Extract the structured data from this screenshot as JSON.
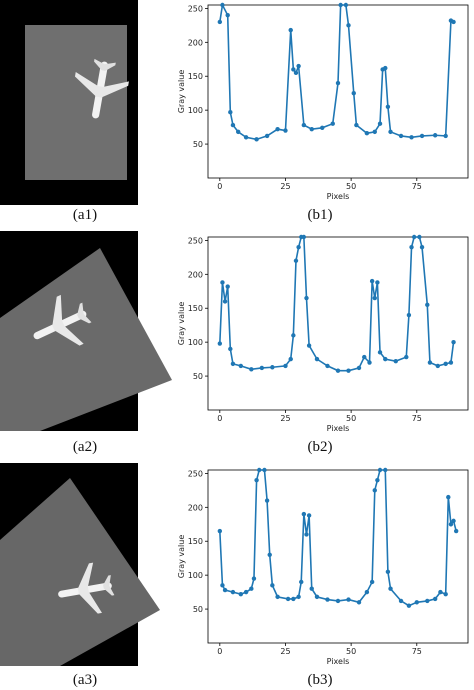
{
  "figure": {
    "image_captions": [
      "(a1)",
      "(a2)",
      "(a3)"
    ]
  },
  "chart_data": [
    {
      "type": "line",
      "caption": "(b1)",
      "xlabel": "Pixels",
      "ylabel": "Gray value",
      "xlim": [
        -4.5,
        94.5
      ],
      "ylim": [
        0,
        255
      ],
      "xticks": [
        0,
        25,
        50,
        75
      ],
      "yticks": [
        50,
        100,
        150,
        200,
        250
      ],
      "series": [
        {
          "color": "#1f77b4",
          "x": [
            0,
            1,
            3,
            4,
            5,
            7,
            10,
            14,
            18,
            22,
            25,
            27,
            28,
            29,
            30,
            32,
            35,
            39,
            43,
            45,
            46,
            48,
            49,
            51,
            52,
            56,
            59,
            61,
            62,
            63,
            64,
            65,
            69,
            73,
            77,
            82,
            86,
            88,
            89
          ],
          "values": [
            230,
            255,
            240,
            97,
            78,
            68,
            60,
            57,
            62,
            72,
            70,
            218,
            160,
            155,
            165,
            78,
            72,
            74,
            80,
            140,
            255,
            255,
            225,
            125,
            78,
            66,
            68,
            80,
            160,
            162,
            105,
            68,
            62,
            60,
            62,
            63,
            62,
            232,
            230
          ]
        }
      ]
    },
    {
      "type": "line",
      "caption": "(b2)",
      "xlabel": "Pixels",
      "ylabel": "Gray value",
      "xlim": [
        -4.5,
        94.5
      ],
      "ylim": [
        0,
        255
      ],
      "xticks": [
        0,
        25,
        50,
        75
      ],
      "yticks": [
        50,
        100,
        150,
        200,
        250
      ],
      "series": [
        {
          "color": "#1f77b4",
          "x": [
            0,
            1,
            2,
            3,
            4,
            5,
            8,
            12,
            16,
            20,
            25,
            27,
            28,
            29,
            30,
            31,
            32,
            33,
            34,
            37,
            41,
            45,
            49,
            53,
            55,
            57,
            58,
            59,
            60,
            61,
            63,
            67,
            71,
            72,
            73,
            74,
            76,
            77,
            79,
            80,
            83,
            86,
            88,
            89
          ],
          "values": [
            98,
            188,
            160,
            182,
            90,
            68,
            65,
            60,
            62,
            63,
            65,
            75,
            110,
            220,
            240,
            255,
            255,
            165,
            95,
            75,
            65,
            58,
            58,
            62,
            78,
            70,
            190,
            165,
            188,
            85,
            75,
            72,
            78,
            140,
            240,
            255,
            255,
            240,
            155,
            70,
            65,
            68,
            70,
            100
          ]
        }
      ]
    },
    {
      "type": "line",
      "caption": "(b3)",
      "xlabel": "Pixels",
      "ylabel": "Gray value",
      "xlim": [
        -4.5,
        94.5
      ],
      "ylim": [
        0,
        255
      ],
      "xticks": [
        0,
        25,
        50,
        75
      ],
      "yticks": [
        50,
        100,
        150,
        200,
        250
      ],
      "series": [
        {
          "color": "#1f77b4",
          "x": [
            0,
            1,
            2,
            5,
            8,
            10,
            12,
            13,
            14,
            15,
            17,
            18,
            19,
            20,
            22,
            26,
            28,
            30,
            31,
            32,
            33,
            34,
            35,
            37,
            41,
            45,
            49,
            53,
            56,
            58,
            59,
            60,
            61,
            63,
            64,
            65,
            69,
            72,
            75,
            79,
            82,
            84,
            86,
            87,
            88,
            89,
            90
          ],
          "values": [
            165,
            85,
            78,
            75,
            72,
            75,
            80,
            95,
            240,
            255,
            255,
            210,
            130,
            85,
            68,
            65,
            65,
            68,
            90,
            190,
            160,
            188,
            80,
            68,
            64,
            62,
            64,
            60,
            75,
            90,
            225,
            240,
            255,
            255,
            105,
            80,
            62,
            55,
            60,
            62,
            65,
            75,
            72,
            215,
            175,
            180,
            165
          ]
        }
      ]
    }
  ]
}
